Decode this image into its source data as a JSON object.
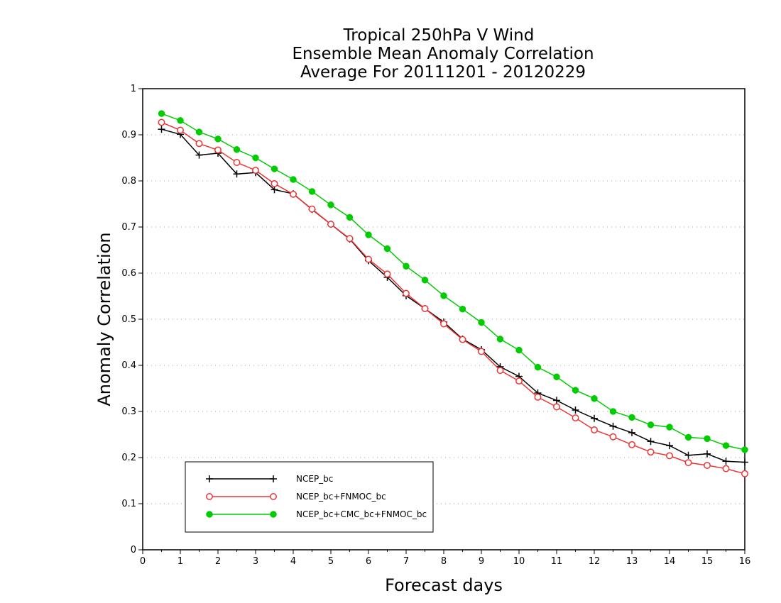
{
  "chart_data": {
    "type": "line",
    "title_lines": [
      "Tropical 250hPa V Wind",
      "Ensemble Mean Anomaly Correlation",
      "Average For 20111201 - 20120229"
    ],
    "xlabel": "Forecast days",
    "ylabel": "Anomaly Correlation",
    "xlim": [
      0,
      16
    ],
    "ylim": [
      0,
      1
    ],
    "xticks": [
      0,
      1,
      2,
      3,
      4,
      5,
      6,
      7,
      8,
      9,
      10,
      11,
      12,
      13,
      14,
      15,
      16
    ],
    "xtick_labels": [
      "0",
      "1",
      "2",
      "3",
      "4",
      "5",
      "6",
      "7",
      "8",
      "9",
      "10",
      "11",
      "12",
      "13",
      "14",
      "15",
      "16"
    ],
    "yticks": [
      0,
      0.1,
      0.2,
      0.3,
      0.4,
      0.5,
      0.6,
      0.7,
      0.8,
      0.9,
      1
    ],
    "ytick_labels": [
      "0",
      "0.1",
      "0.2",
      "0.3",
      "0.4",
      "0.5",
      "0.6",
      "0.7",
      "0.8",
      "0.9",
      "1"
    ],
    "grid": "horizontal dotted",
    "legend_position": "bottom-left",
    "x": [
      0.5,
      1,
      1.5,
      2,
      2.5,
      3,
      3.5,
      4,
      4.5,
      5,
      5.5,
      6,
      6.5,
      7,
      7.5,
      8,
      8.5,
      9,
      9.5,
      10,
      10.5,
      11,
      11.5,
      12,
      12.5,
      13,
      13.5,
      14,
      14.5,
      15,
      15.5,
      16
    ],
    "series": [
      {
        "name": "NCEP_bc",
        "color": "#000000",
        "marker": "plus",
        "values": [
          0.912,
          0.901,
          0.856,
          0.86,
          0.815,
          0.818,
          0.781,
          0.772,
          0.738,
          0.706,
          0.674,
          0.627,
          0.591,
          0.551,
          0.523,
          0.494,
          0.457,
          0.434,
          0.397,
          0.376,
          0.34,
          0.324,
          0.303,
          0.285,
          0.268,
          0.254,
          0.235,
          0.226,
          0.205,
          0.208,
          0.192,
          0.19
        ]
      },
      {
        "name": "NCEP_bc+FNMOC_bc",
        "color": "#ee3333",
        "marker": "open-circle",
        "values": [
          0.927,
          0.91,
          0.881,
          0.867,
          0.84,
          0.823,
          0.794,
          0.771,
          0.739,
          0.706,
          0.675,
          0.63,
          0.598,
          0.556,
          0.523,
          0.49,
          0.456,
          0.43,
          0.389,
          0.366,
          0.331,
          0.31,
          0.286,
          0.26,
          0.245,
          0.228,
          0.212,
          0.204,
          0.189,
          0.183,
          0.176,
          0.165
        ]
      },
      {
        "name": "NCEP_bc+CMC_bc+FNMOC_bc",
        "color": "#00cc00",
        "marker": "filled-circle",
        "values": [
          0.946,
          0.931,
          0.906,
          0.891,
          0.868,
          0.85,
          0.826,
          0.803,
          0.777,
          0.748,
          0.721,
          0.683,
          0.653,
          0.615,
          0.585,
          0.551,
          0.522,
          0.493,
          0.457,
          0.433,
          0.396,
          0.375,
          0.346,
          0.328,
          0.3,
          0.287,
          0.271,
          0.266,
          0.244,
          0.241,
          0.226,
          0.217
        ]
      }
    ]
  }
}
